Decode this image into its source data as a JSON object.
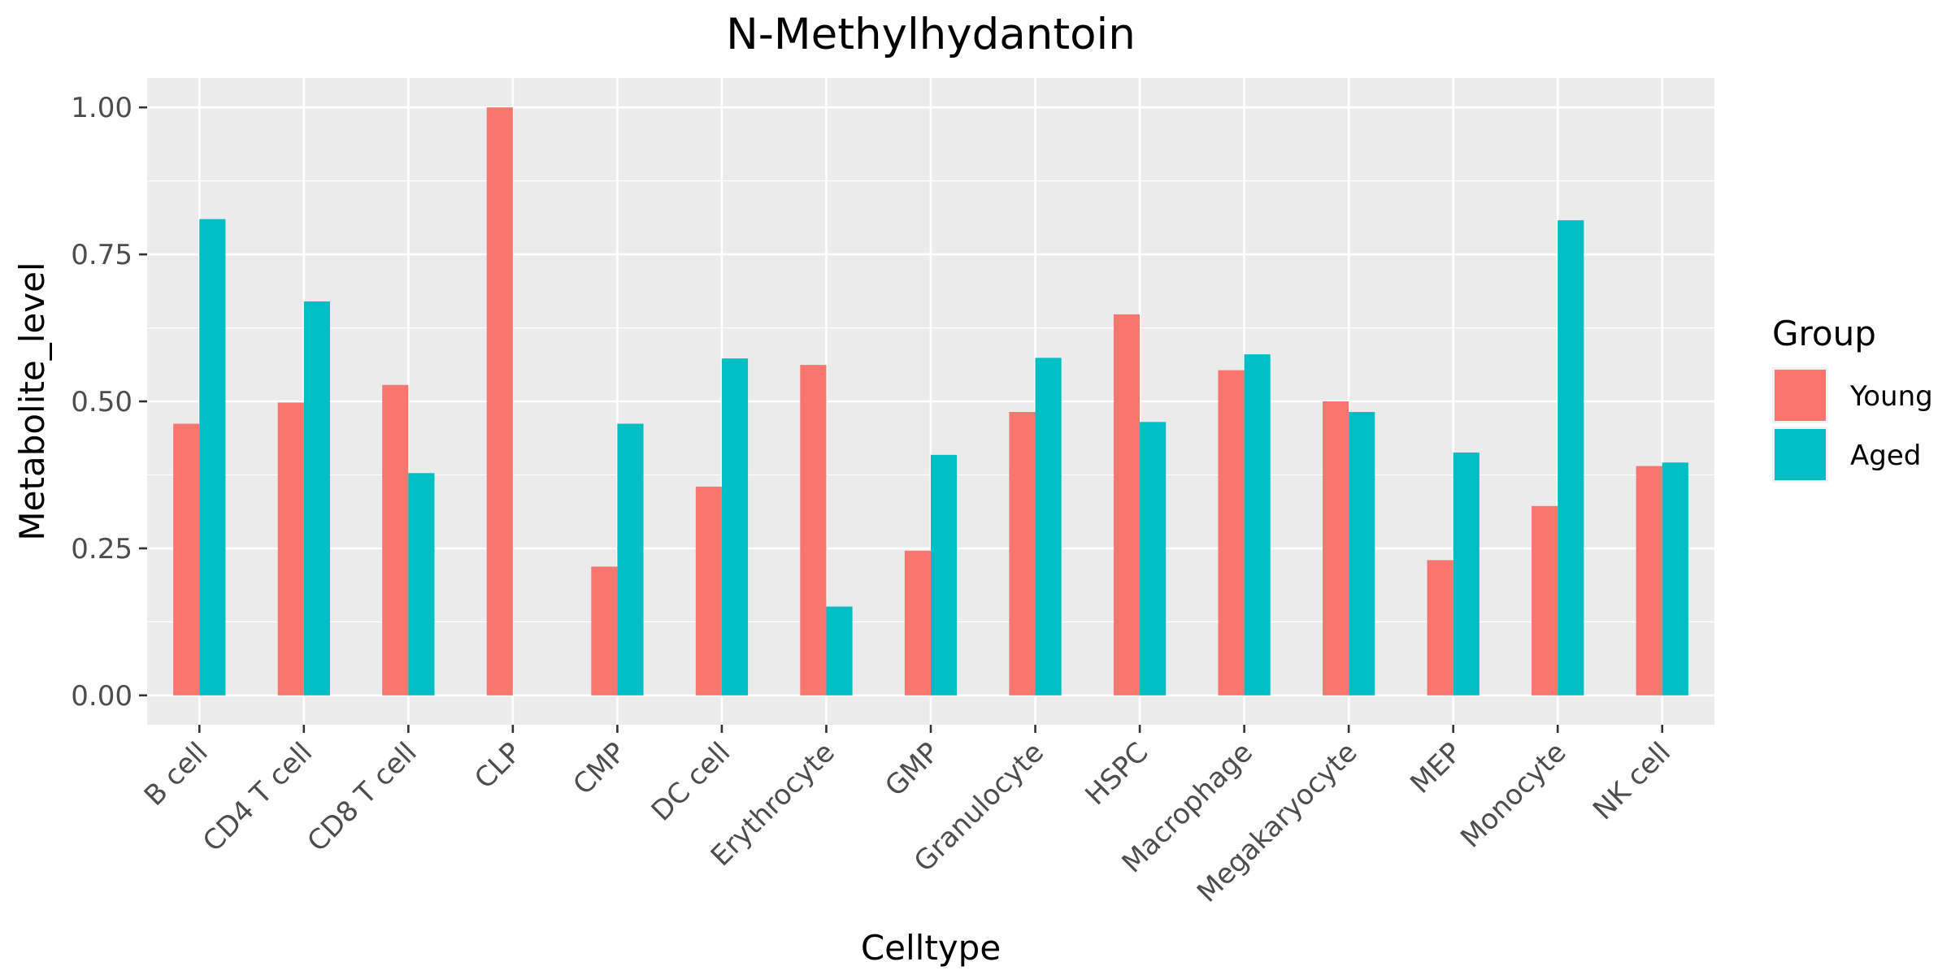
{
  "chart_data": {
    "type": "bar",
    "title": "N-Methylhydantoin",
    "xlabel": "Celltype",
    "ylabel": "Metabolite_level",
    "categories": [
      "B cell",
      "CD4 T cell",
      "CD8 T cell",
      "CLP",
      "CMP",
      "DC cell",
      "Erythrocyte",
      "GMP",
      "Granulocyte",
      "HSPC",
      "Macrophage",
      "Megakaryocyte",
      "MEP",
      "Monocyte",
      "NK cell"
    ],
    "series": [
      {
        "name": "Young",
        "color": "#F8766D",
        "values": [
          0.462,
          0.498,
          0.528,
          1.0,
          0.219,
          0.355,
          0.562,
          0.246,
          0.482,
          0.648,
          0.553,
          0.5,
          0.23,
          0.322,
          0.39
        ]
      },
      {
        "name": "Aged",
        "color": "#00BFC4",
        "values": [
          0.81,
          0.67,
          0.378,
          0.0,
          0.462,
          0.573,
          0.151,
          0.409,
          0.574,
          0.465,
          0.58,
          0.482,
          0.413,
          0.808,
          0.396
        ]
      }
    ],
    "ylim": [
      -0.05,
      1.05
    ],
    "yticks": [
      0.0,
      0.25,
      0.5,
      0.75,
      1.0
    ],
    "ytick_labels": [
      "0.00",
      "0.25",
      "0.50",
      "0.75",
      "1.00"
    ],
    "grid": true,
    "legend": {
      "title": "Group",
      "position": "right"
    }
  }
}
